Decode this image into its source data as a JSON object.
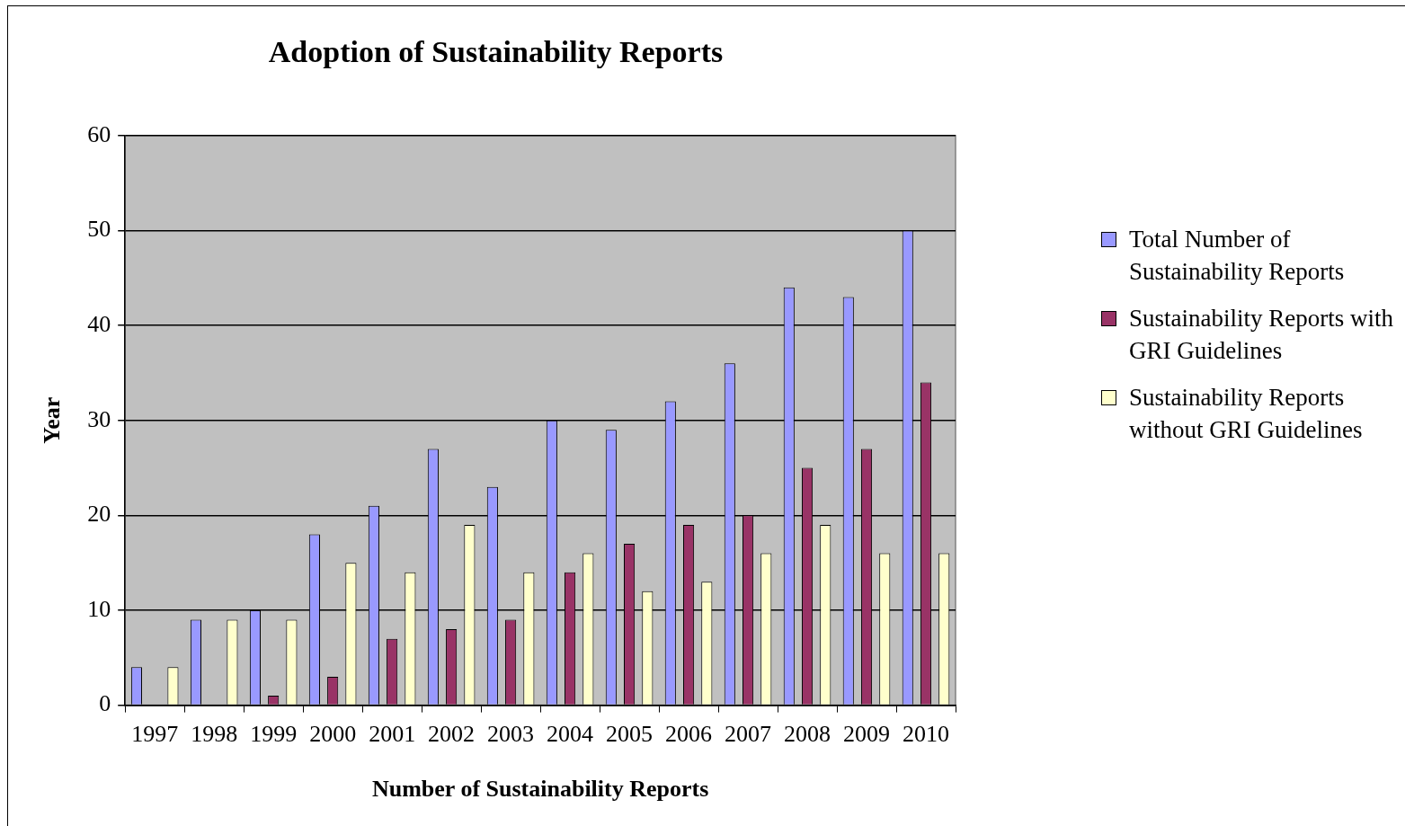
{
  "chart_data": {
    "type": "bar",
    "title": "Adoption of Sustainability Reports",
    "xlabel": "Number of Sustainability Reports",
    "ylabel": "Year",
    "categories": [
      "1997",
      "1998",
      "1999",
      "2000",
      "2001",
      "2002",
      "2003",
      "2004",
      "2005",
      "2006",
      "2007",
      "2008",
      "2009",
      "2010"
    ],
    "series": [
      {
        "name": "Total Number of Sustainability Reports",
        "color": "#9999ff",
        "values": [
          4,
          9,
          10,
          18,
          21,
          27,
          23,
          30,
          29,
          32,
          36,
          44,
          43,
          50
        ]
      },
      {
        "name": "Sustainability Reports with GRI Guidelines",
        "color": "#993366",
        "values": [
          0,
          0,
          1,
          3,
          7,
          8,
          9,
          14,
          17,
          19,
          20,
          25,
          27,
          34
        ]
      },
      {
        "name": "Sustainability Reports without GRI Guidelines",
        "color": "#ffffcc",
        "values": [
          4,
          9,
          9,
          15,
          14,
          19,
          14,
          16,
          12,
          13,
          16,
          19,
          16,
          16
        ]
      }
    ],
    "ylim": [
      0,
      60
    ],
    "yticks": [
      0,
      10,
      20,
      30,
      40,
      50,
      60
    ],
    "grid": "y",
    "legend": "right"
  }
}
